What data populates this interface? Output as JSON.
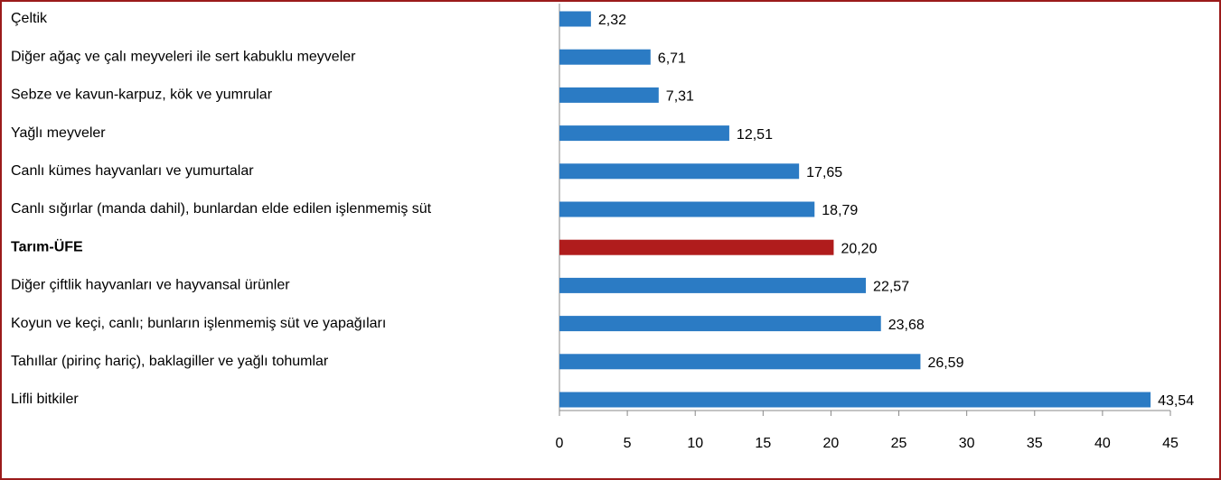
{
  "chart_data": {
    "type": "barh",
    "categories": [
      "Çeltik",
      "Diğer ağaç ve çalı meyveleri ile sert kabuklu meyveler",
      "Sebze ve kavun-karpuz, kök ve yumrular",
      "Yağlı meyveler",
      "Canlı kümes hayvanları ve yumurtalar",
      "Canlı sığırlar (manda dahil), bunlardan elde edilen işlenmemiş süt",
      "Tarım-ÜFE",
      "Diğer çiftlik hayvanları ve hayvansal ürünler",
      "Koyun ve keçi, canlı; bunların işlenmemiş süt ve yapağıları",
      "Tahıllar (pirinç hariç), baklagiller ve yağlı tohumlar",
      "Lifli bitkiler"
    ],
    "values": [
      2.32,
      6.71,
      7.31,
      12.51,
      17.65,
      18.79,
      20.2,
      22.57,
      23.68,
      26.59,
      43.54
    ],
    "value_labels": [
      "2,32",
      "6,71",
      "7,31",
      "12,51",
      "17,65",
      "18,79",
      "20,20",
      "22,57",
      "23,68",
      "26,59",
      "43,54"
    ],
    "colors": [
      "#2b7bc4",
      "#2b7bc4",
      "#2b7bc4",
      "#2b7bc4",
      "#2b7bc4",
      "#2b7bc4",
      "#b01c1c",
      "#2b7bc4",
      "#2b7bc4",
      "#2b7bc4",
      "#2b7bc4"
    ],
    "highlight": 6,
    "xlim": [
      0,
      45
    ],
    "xticks": [
      0,
      5,
      10,
      15,
      20,
      25,
      30,
      35,
      40,
      45
    ]
  }
}
